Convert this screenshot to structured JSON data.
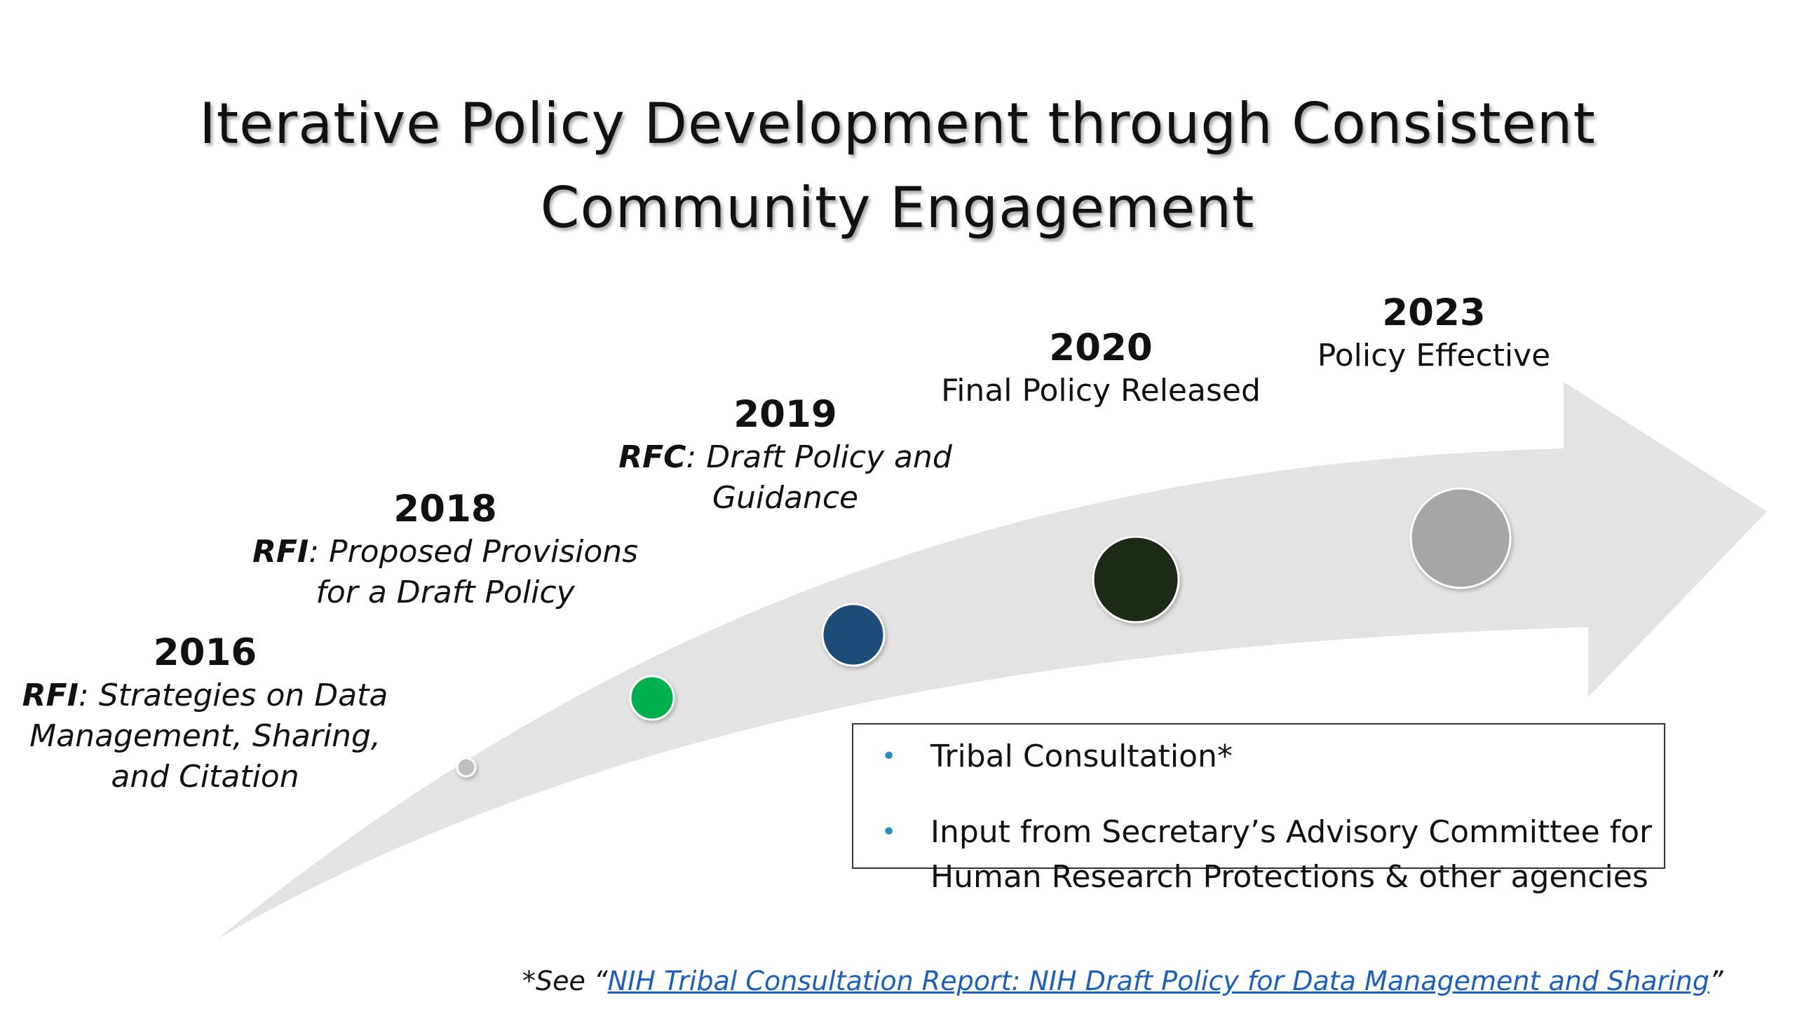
{
  "title": {
    "line1": "Iterative Policy Development through Consistent",
    "line2": "Community Engagement"
  },
  "milestones": [
    {
      "year": "2016",
      "prefix": "RFI",
      "line1": ": Strategies on Data",
      "line2": "Management, Sharing,",
      "line3": "and Citation",
      "dot_color": "#bfbfbf"
    },
    {
      "year": "2018",
      "prefix": "RFI",
      "line1": ": Proposed Provisions",
      "line2": "for a Draft Policy",
      "dot_color": "#00b050"
    },
    {
      "year": "2019",
      "prefix": "RFC",
      "line1": ": Draft Policy and",
      "line2": "Guidance",
      "dot_color": "#1f4e79"
    },
    {
      "year": "2020",
      "line1": "Final Policy Released",
      "dot_color": "#1e2a13"
    },
    {
      "year": "2023",
      "line1": "Policy Effective",
      "dot_color": "#a6a6a6"
    }
  ],
  "callout": {
    "bullet_symbol": "•",
    "items": [
      {
        "line1": "Tribal Consultation*"
      },
      {
        "line1": "Input from Secretary’s Advisory Committee for",
        "line2": "Human Research Protections & other agencies"
      }
    ]
  },
  "footnote": {
    "prefix": "*See “",
    "link_text": "NIH Tribal Consultation Report: NIH Draft Policy for Data Management and Sharing",
    "suffix": "”"
  },
  "colors": {
    "arrow_fill": "#e3e3e3",
    "accent_bullet": "#1f8fc2",
    "link": "#1d5fc1"
  }
}
